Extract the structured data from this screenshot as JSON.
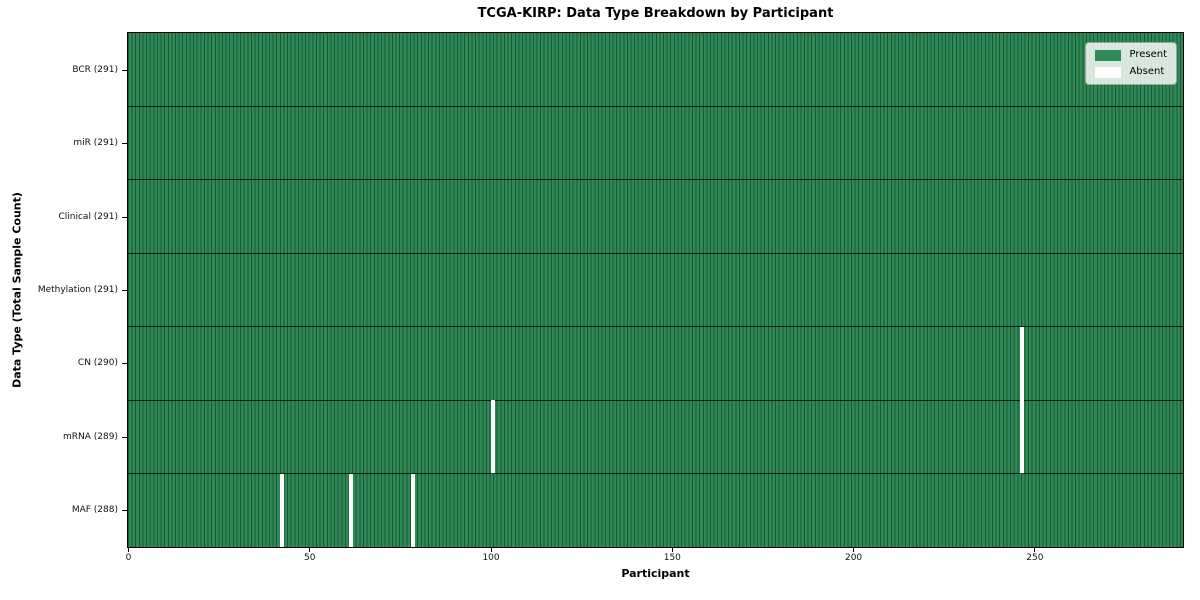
{
  "chart_data": {
    "type": "heatmap",
    "title": "TCGA-KIRP: Data Type Breakdown by Participant",
    "xlabel": "Participant",
    "ylabel": "Data Type (Total Sample Count)",
    "n_participants": 291,
    "xlim": [
      0,
      291
    ],
    "x_ticks": [
      0,
      50,
      100,
      150,
      200,
      250
    ],
    "grid": "cell-edges",
    "rows": [
      {
        "label": "BCR (291)",
        "data_type": "BCR",
        "total_sample_count": 291,
        "absent_participants": []
      },
      {
        "label": "miR (291)",
        "data_type": "miR",
        "total_sample_count": 291,
        "absent_participants": []
      },
      {
        "label": "Clinical (291)",
        "data_type": "Clinical",
        "total_sample_count": 291,
        "absent_participants": []
      },
      {
        "label": "Methylation (291)",
        "data_type": "Methylation",
        "total_sample_count": 291,
        "absent_participants": []
      },
      {
        "label": "CN (290)",
        "data_type": "CN",
        "total_sample_count": 290,
        "absent_participants": [
          246
        ]
      },
      {
        "label": "mRNA (289)",
        "data_type": "mRNA",
        "total_sample_count": 289,
        "absent_participants": [
          100,
          246
        ]
      },
      {
        "label": "MAF (288)",
        "data_type": "MAF",
        "total_sample_count": 288,
        "absent_participants": [
          42,
          61,
          78
        ]
      }
    ],
    "colors": {
      "present": "#2e8b57",
      "absent": "#ffffff",
      "cell_edge": "rgba(0,0,0,0.38)",
      "row_grid": "#1f1f1f",
      "background": "#ffffff"
    },
    "legend": {
      "position": "upper right",
      "items": [
        {
          "label": "Present",
          "color": "#2e8b57"
        },
        {
          "label": "Absent",
          "color": "#ffffff"
        }
      ]
    }
  }
}
